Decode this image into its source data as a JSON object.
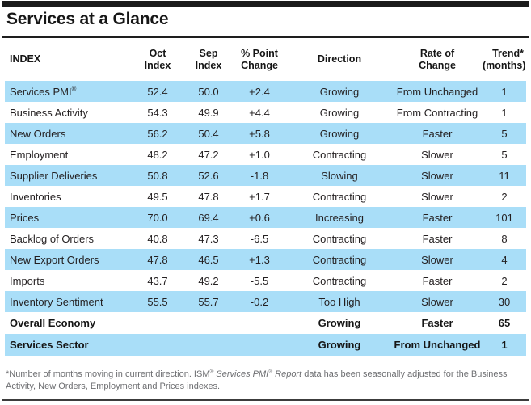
{
  "title": "Services at a Glance",
  "colors": {
    "row_highlight": "#a9def8",
    "top_bar": "#1b1b1b",
    "body_text": "#231f20",
    "footnote_text": "#6d6e71"
  },
  "table": {
    "columns": [
      {
        "line1": "INDEX",
        "line2": ""
      },
      {
        "line1": "Oct",
        "line2": "Index"
      },
      {
        "line1": "Sep",
        "line2": "Index"
      },
      {
        "line1": "% Point",
        "line2": "Change"
      },
      {
        "line1": "Direction",
        "line2": ""
      },
      {
        "line1": "Rate of",
        "line2": "Change"
      },
      {
        "line1": "Trend*",
        "line2": "(months)"
      }
    ],
    "rows": [
      {
        "label": "Services PMI",
        "label_sup": "®",
        "oct": "52.4",
        "sep": "50.0",
        "change": "+2.4",
        "direction": "Growing",
        "rate": "From Unchanged",
        "trend": "1"
      },
      {
        "label": "Business Activity",
        "oct": "54.3",
        "sep": "49.9",
        "change": "+4.4",
        "direction": "Growing",
        "rate": "From Contracting",
        "trend": "1"
      },
      {
        "label": "New Orders",
        "oct": "56.2",
        "sep": "50.4",
        "change": "+5.8",
        "direction": "Growing",
        "rate": "Faster",
        "trend": "5"
      },
      {
        "label": "Employment",
        "oct": "48.2",
        "sep": "47.2",
        "change": "+1.0",
        "direction": "Contracting",
        "rate": "Slower",
        "trend": "5"
      },
      {
        "label": "Supplier Deliveries",
        "oct": "50.8",
        "sep": "52.6",
        "change": "-1.8",
        "direction": "Slowing",
        "rate": "Slower",
        "trend": "11"
      },
      {
        "label": "Inventories",
        "oct": "49.5",
        "sep": "47.8",
        "change": "+1.7",
        "direction": "Contracting",
        "rate": "Slower",
        "trend": "2"
      },
      {
        "label": "Prices",
        "oct": "70.0",
        "sep": "69.4",
        "change": "+0.6",
        "direction": "Increasing",
        "rate": "Faster",
        "trend": "101"
      },
      {
        "label": "Backlog of Orders",
        "oct": "40.8",
        "sep": "47.3",
        "change": "-6.5",
        "direction": "Contracting",
        "rate": "Faster",
        "trend": "8"
      },
      {
        "label": "New Export Orders",
        "oct": "47.8",
        "sep": "46.5",
        "change": "+1.3",
        "direction": "Contracting",
        "rate": "Slower",
        "trend": "4"
      },
      {
        "label": "Imports",
        "oct": "43.7",
        "sep": "49.2",
        "change": "-5.5",
        "direction": "Contracting",
        "rate": "Faster",
        "trend": "2"
      },
      {
        "label": "Inventory Sentiment",
        "oct": "55.5",
        "sep": "55.7",
        "change": "-0.2",
        "direction": "Too High",
        "rate": "Slower",
        "trend": "30"
      },
      {
        "label": "Overall Economy",
        "oct": "",
        "sep": "",
        "change": "",
        "direction": "Growing",
        "rate": "Faster",
        "trend": "65",
        "summary": true
      },
      {
        "label": "Services Sector",
        "oct": "",
        "sep": "",
        "change": "",
        "direction": "Growing",
        "rate": "From Unchanged",
        "trend": "1",
        "summary": true
      }
    ]
  },
  "footnote": {
    "parts": [
      {
        "text": "*Number of months moving in current direction. ISM"
      },
      {
        "text": "®",
        "sup": true
      },
      {
        "text": " "
      },
      {
        "text": "Services PMI",
        "italic": true
      },
      {
        "text": "®",
        "sup": true,
        "italic": true
      },
      {
        "text": " Report",
        "italic": true
      },
      {
        "text": " data has been seasonally adjusted for the Business Activity, New Orders, Employment and Prices indexes."
      }
    ]
  }
}
